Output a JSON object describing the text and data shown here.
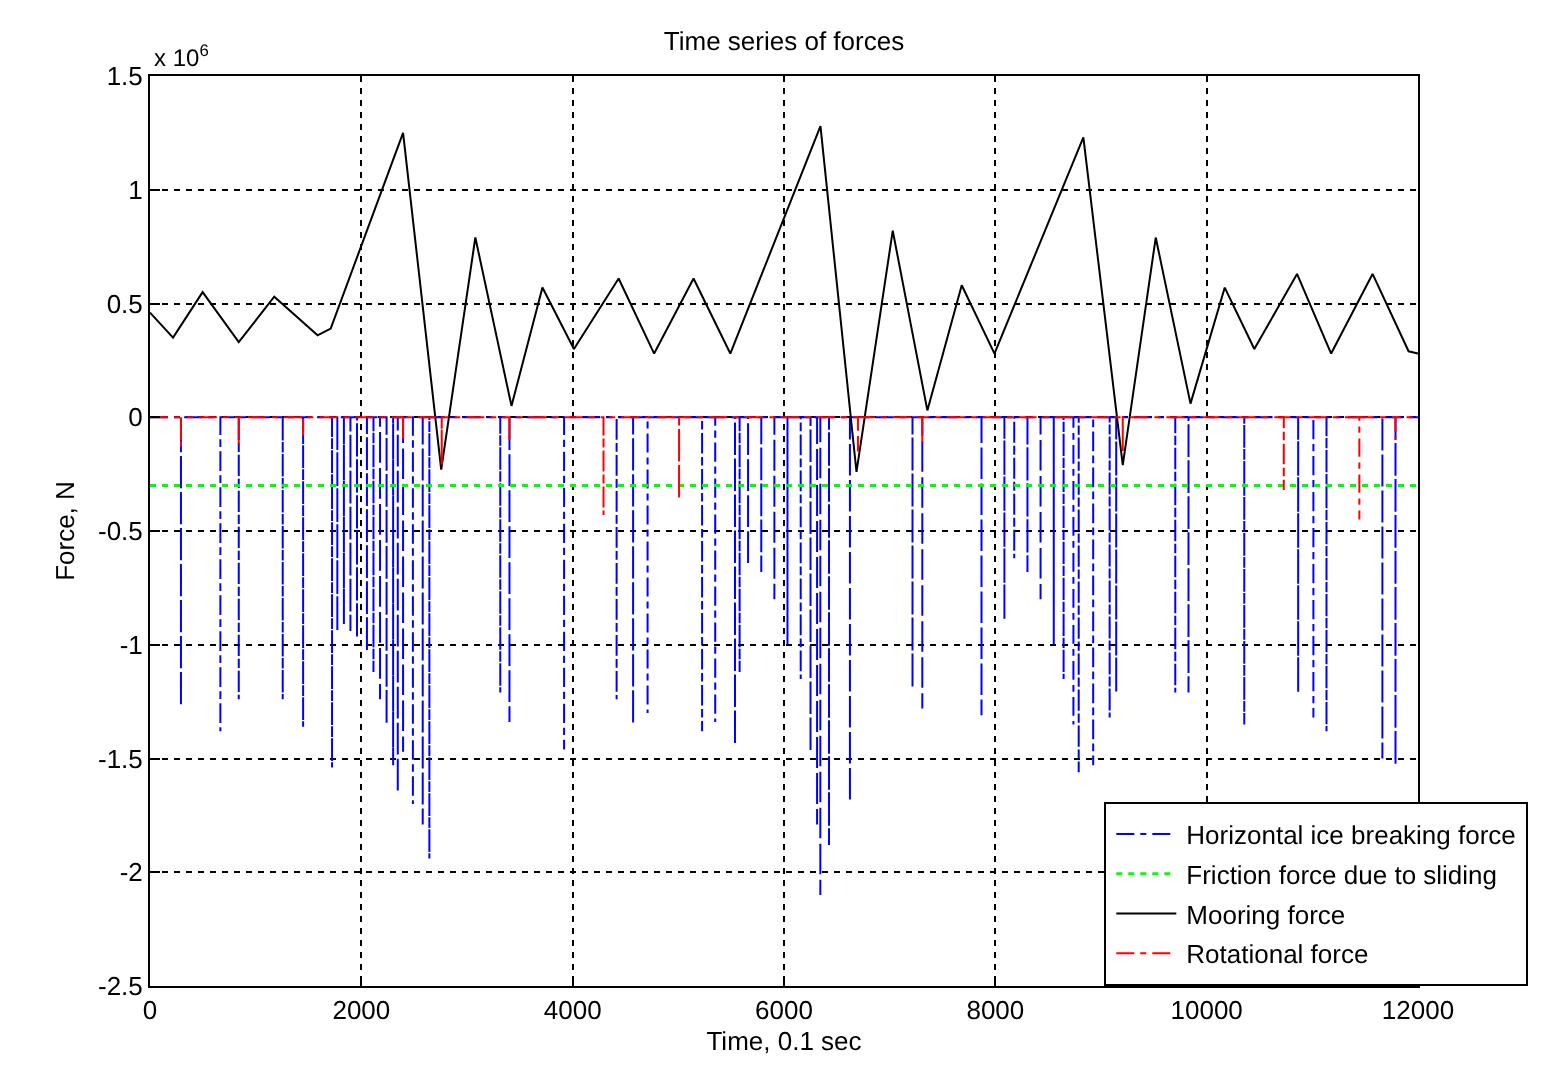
{
  "chart_data": {
    "type": "line",
    "title": "Time series of forces",
    "xlabel": "Time, 0.1 sec",
    "ylabel": "Force, N",
    "annotations": [
      "x 10$^{6}$"
    ],
    "xlim": [
      0,
      12000
    ],
    "xticks": [
      0,
      2000,
      4000,
      6000,
      8000,
      10000,
      12000
    ],
    "ylim": [
      -2.5,
      1.5
    ],
    "yticks": [
      -2.5,
      -2,
      -1.5,
      -1,
      -0.5,
      0,
      0.5,
      1,
      1.5
    ],
    "grid": true,
    "legend": "bottom right",
    "marker": "none",
    "series": [
      {
        "name": "Horizontal ice breaking force",
        "color": "#0000ff",
        "line_style": "dashdot",
        "x": [
          0,
          293,
          293,
          293,
          666,
          666,
          666,
          840,
          840,
          840,
          1256,
          1256,
          1256,
          1449,
          1449,
          1449,
          1723,
          1723,
          1723,
          1773,
          1773,
          1773,
          1835,
          1835,
          1835,
          1897,
          1897,
          1897,
          1959,
          1959,
          1959,
          2053,
          2053,
          2053,
          2115,
          2115,
          2115,
          2177,
          2177,
          2177,
          2239,
          2239,
          2239,
          2301,
          2301,
          2301,
          2345,
          2345,
          2345,
          2395,
          2395,
          2395,
          2488,
          2488,
          2488,
          2581,
          2581,
          2581,
          2644,
          2644,
          2644,
          3315,
          3315,
          3315,
          3402,
          3402,
          3402,
          3919,
          3919,
          3919,
          4416,
          4416,
          4416,
          4572,
          4572,
          4572,
          4709,
          4709,
          4709,
          5225,
          5225,
          5225,
          5349,
          5349,
          5349,
          5536,
          5536,
          5536,
          5580,
          5580,
          5580,
          5660,
          5660,
          5660,
          5785,
          5785,
          5785,
          5909,
          5909,
          5909,
          6033,
          6033,
          6033,
          6158,
          6158,
          6158,
          6251,
          6251,
          6251,
          6313,
          6313,
          6313,
          6344,
          6344,
          6344,
          6426,
          6426,
          6426,
          6624,
          6624,
          6624,
          7216,
          7216,
          7216,
          7309,
          7309,
          7309,
          7869,
          7869,
          7869,
          8086,
          8086,
          8086,
          8179,
          8179,
          8179,
          8304,
          8304,
          8304,
          8428,
          8428,
          8428,
          8553,
          8553,
          8553,
          8646,
          8646,
          8646,
          8739,
          8739,
          8739,
          8789,
          8789,
          8789,
          8926,
          8926,
          8926,
          9082,
          9082,
          9082,
          9144,
          9144,
          9144,
          9703,
          9703,
          9703,
          9828,
          9828,
          9828,
          10356,
          10356,
          10356,
          10866,
          10866,
          10866,
          11010,
          11010,
          11010,
          11134,
          11134,
          11134,
          11663,
          11663,
          11663,
          11787,
          11787,
          11787,
          12000
        ],
        "values": [
          0,
          0,
          -1.27,
          0,
          0,
          -1.38,
          0,
          0,
          -1.24,
          0,
          0,
          -1.24,
          0,
          0,
          -1.36,
          0,
          0,
          -1.54,
          0,
          0,
          -0.94,
          0,
          0,
          -0.91,
          0,
          0,
          -0.94,
          0,
          0,
          -0.97,
          0,
          0,
          -1.03,
          0,
          0,
          -1.12,
          0,
          0,
          -1.24,
          0,
          0,
          -1.35,
          0,
          0,
          -1.53,
          0,
          0,
          -1.65,
          0,
          0,
          -1.47,
          0,
          0,
          -1.7,
          0,
          0,
          -1.79,
          0,
          0,
          -1.94,
          0,
          0,
          -1.21,
          0,
          0,
          -1.34,
          0,
          0,
          -1.46,
          0,
          0,
          -1.24,
          0,
          0,
          -1.35,
          0,
          0,
          -1.3,
          0,
          0,
          -1.38,
          0,
          0,
          -1.34,
          0,
          0,
          -1.44,
          0,
          0,
          -1.12,
          0,
          0,
          -0.65,
          0,
          0,
          -0.68,
          0,
          0,
          -0.8,
          0,
          0,
          -1.0,
          0,
          0,
          -1.15,
          0,
          0,
          -1.47,
          0,
          0,
          -1.79,
          0,
          0,
          -2.1,
          0,
          0,
          -1.88,
          0,
          0,
          -1.69,
          0,
          0,
          -1.19,
          0,
          0,
          -1.28,
          0,
          0,
          -1.31,
          0,
          0,
          -0.89,
          0,
          0,
          -0.62,
          0,
          0,
          -0.68,
          0,
          0,
          -0.8,
          0,
          0,
          -1.0,
          0,
          0,
          -1.15,
          0,
          0,
          -1.35,
          0,
          0,
          -1.56,
          0,
          0,
          -1.53,
          0,
          0,
          -1.32,
          0,
          0,
          -1.21,
          0,
          0,
          -1.21,
          0,
          0,
          -1.21,
          0,
          0,
          -1.35,
          0,
          0,
          -1.21,
          0,
          0,
          -1.32,
          0,
          0,
          -1.38,
          0,
          0,
          -1.5,
          0,
          0,
          -1.53,
          0,
          0
        ]
      },
      {
        "name": "Friction force due to sliding",
        "color": "#00ff00",
        "line_style": "dotted",
        "x": [
          0,
          12000
        ],
        "values": [
          -0.3,
          -0.3
        ]
      },
      {
        "name": "Mooring force",
        "color": "#000000",
        "line_style": "solid",
        "x": [
          0,
          218,
          498,
          840,
          1176,
          1586,
          1710,
          2395,
          2756,
          3079,
          3421,
          3714,
          4012,
          4435,
          4771,
          5144,
          5492,
          6345,
          6686,
          7029,
          7357,
          7682,
          7992,
          8833,
          9206,
          9518,
          9847,
          10171,
          10451,
          10855,
          11178,
          11570,
          11911,
          12000
        ],
        "values": [
          0.46,
          0.35,
          0.55,
          0.33,
          0.53,
          0.36,
          0.39,
          1.25,
          -0.23,
          0.79,
          0.05,
          0.57,
          0.3,
          0.61,
          0.28,
          0.61,
          0.28,
          1.28,
          -0.24,
          0.82,
          0.03,
          0.58,
          0.28,
          1.23,
          -0.21,
          0.79,
          0.06,
          0.57,
          0.3,
          0.63,
          0.28,
          0.63,
          0.29,
          0.28
        ]
      },
      {
        "name": "Rotational force",
        "color": "#ff0000",
        "line_style": "dashdot",
        "x": [
          0,
          293,
          293,
          293,
          840,
          840,
          840,
          1449,
          1449,
          1449,
          2395,
          2395,
          2395,
          2761,
          2761,
          2761,
          3402,
          3402,
          3402,
          4292,
          4292,
          4292,
          5007,
          5007,
          5007,
          6700,
          6700,
          6700,
          7309,
          7309,
          7309,
          9206,
          9206,
          9206,
          10730,
          10730,
          10730,
          11445,
          11445,
          11445,
          11787,
          11787,
          11787,
          12000
        ],
        "values": [
          0,
          0,
          -0.13,
          0,
          0,
          -0.13,
          0,
          0,
          -0.08,
          0,
          0,
          -0.1,
          0,
          0,
          -0.21,
          0,
          0,
          -0.1,
          0,
          0,
          -0.43,
          0,
          0,
          -0.36,
          0,
          0,
          -0.15,
          0,
          0,
          -0.12,
          0,
          0,
          -0.15,
          0,
          0,
          -0.32,
          0,
          0,
          -0.45,
          0,
          0,
          -0.1,
          0,
          0
        ]
      }
    ]
  }
}
